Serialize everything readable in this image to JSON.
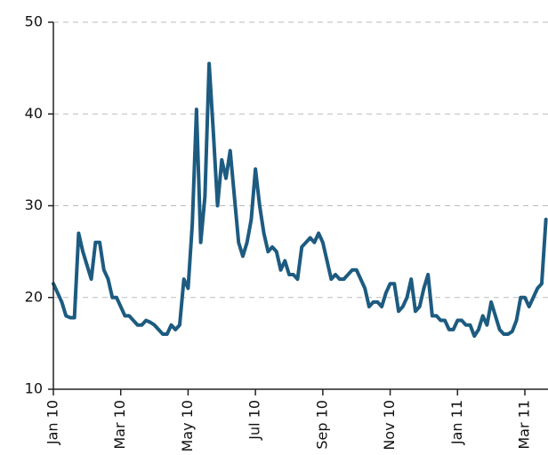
{
  "chart_data": {
    "type": "line",
    "categories": [
      "Jan 10",
      null,
      null,
      null,
      null,
      null,
      null,
      null,
      null,
      null,
      null,
      null,
      null,
      null,
      null,
      null,
      "Mar 10",
      null,
      null,
      null,
      null,
      null,
      null,
      null,
      null,
      null,
      null,
      null,
      null,
      null,
      null,
      null,
      "May 10",
      null,
      null,
      null,
      null,
      null,
      null,
      null,
      null,
      null,
      null,
      null,
      null,
      null,
      null,
      null,
      "Jul 10",
      null,
      null,
      null,
      null,
      null,
      null,
      null,
      null,
      null,
      null,
      null,
      null,
      null,
      null,
      null,
      "Sep 10",
      null,
      null,
      null,
      null,
      null,
      null,
      null,
      null,
      null,
      null,
      null,
      null,
      null,
      null,
      null,
      "Nov 10",
      null,
      null,
      null,
      null,
      null,
      null,
      null,
      null,
      null,
      null,
      null,
      null,
      null,
      null,
      null,
      "Jan 11",
      null,
      null,
      null,
      null,
      null,
      null,
      null,
      null,
      null,
      null,
      null,
      null,
      null,
      null,
      null,
      "Mar 11",
      null,
      null,
      null,
      null,
      null
    ],
    "values": [
      21.5,
      20.5,
      19.5,
      18,
      17.8,
      17.8,
      27,
      25,
      23.5,
      22,
      26,
      26,
      23,
      22,
      20,
      20,
      19,
      18,
      18,
      17.5,
      17,
      17,
      17.5,
      17.3,
      17,
      16.5,
      16,
      16,
      17,
      16.5,
      17,
      22,
      21,
      28,
      40.5,
      26,
      31,
      45.5,
      38,
      30,
      35,
      33,
      36,
      31,
      26,
      24.5,
      26,
      28.5,
      34,
      30,
      27,
      25,
      25.5,
      25,
      23,
      24,
      22.5,
      22.5,
      22,
      25.5,
      26,
      26.5,
      26,
      27,
      26,
      24,
      22,
      22.5,
      22,
      22,
      22.5,
      23,
      23,
      22,
      21,
      19,
      19.5,
      19.5,
      19,
      20.5,
      21.5,
      21.5,
      18.5,
      19,
      20,
      22,
      18.5,
      19,
      21,
      22.5,
      18,
      18,
      17.5,
      17.5,
      16.5,
      16.5,
      17.5,
      17.5,
      17,
      17,
      15.8,
      16.5,
      18,
      17,
      19.5,
      18,
      16.5,
      16,
      16,
      16.3,
      17.5,
      20,
      20,
      19,
      20,
      21,
      21.5,
      28.5
    ],
    "color": "#1d5b80",
    "ylim": [
      10,
      50
    ],
    "yticks": [
      10,
      20,
      30,
      40,
      50
    ],
    "grid": true
  }
}
